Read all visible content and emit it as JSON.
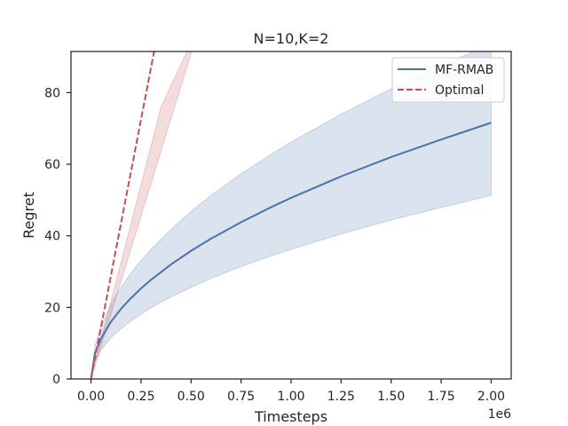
{
  "chart_data": {
    "type": "line",
    "title": "N=10,K=2",
    "xlabel": "Timesteps",
    "ylabel": "Regret",
    "x_offset_label": "1e6",
    "xlim": [
      -0.1,
      2.1
    ],
    "ylim": [
      0,
      91.5
    ],
    "x_ticks": [
      0.0,
      0.25,
      0.5,
      0.75,
      1.0,
      1.25,
      1.5,
      1.75,
      2.0
    ],
    "x_tick_labels": [
      "0.00",
      "0.25",
      "0.50",
      "0.75",
      "1.00",
      "1.25",
      "1.50",
      "1.75",
      "2.00"
    ],
    "y_ticks": [
      0,
      20,
      40,
      60,
      80
    ],
    "y_tick_labels": [
      "0",
      "20",
      "40",
      "60",
      "80"
    ],
    "grid": false,
    "legend_position": "top-right",
    "series": [
      {
        "name": "MF-RMAB",
        "color": "#4c72b0",
        "style": "solid",
        "x": [
          0,
          0.02,
          0.05,
          0.1,
          0.15,
          0.2,
          0.25,
          0.3,
          0.4,
          0.5,
          0.6,
          0.75,
          0.9,
          1.0,
          1.25,
          1.5,
          1.75,
          2.0
        ],
        "y": [
          0,
          7.2,
          11.3,
          16.0,
          19.6,
          22.6,
          25.3,
          27.7,
          32.0,
          35.8,
          39.2,
          43.8,
          48.0,
          50.6,
          56.6,
          62.0,
          66.9,
          71.6
        ],
        "lower": [
          0,
          5.1,
          8.1,
          11.5,
          14.1,
          16.2,
          18.1,
          19.9,
          22.9,
          25.6,
          28.1,
          31.4,
          34.4,
          36.2,
          40.5,
          44.4,
          47.9,
          51.3
        ],
        "upper": [
          0,
          9.4,
          14.8,
          20.9,
          25.6,
          29.6,
          33.1,
          36.2,
          41.8,
          46.8,
          51.3,
          57.3,
          62.8,
          66.2,
          74.0,
          81.1,
          87.6,
          93.6
        ]
      },
      {
        "name": "Optimal",
        "color": "#c44e52",
        "style": "dashed",
        "x": [
          0,
          0.35
        ],
        "y": [
          0,
          101.5
        ],
        "lower": [
          0,
          76.0
        ],
        "upper_x": [
          0,
          0.55
        ],
        "upper": [
          0,
          100.0
        ]
      }
    ]
  }
}
